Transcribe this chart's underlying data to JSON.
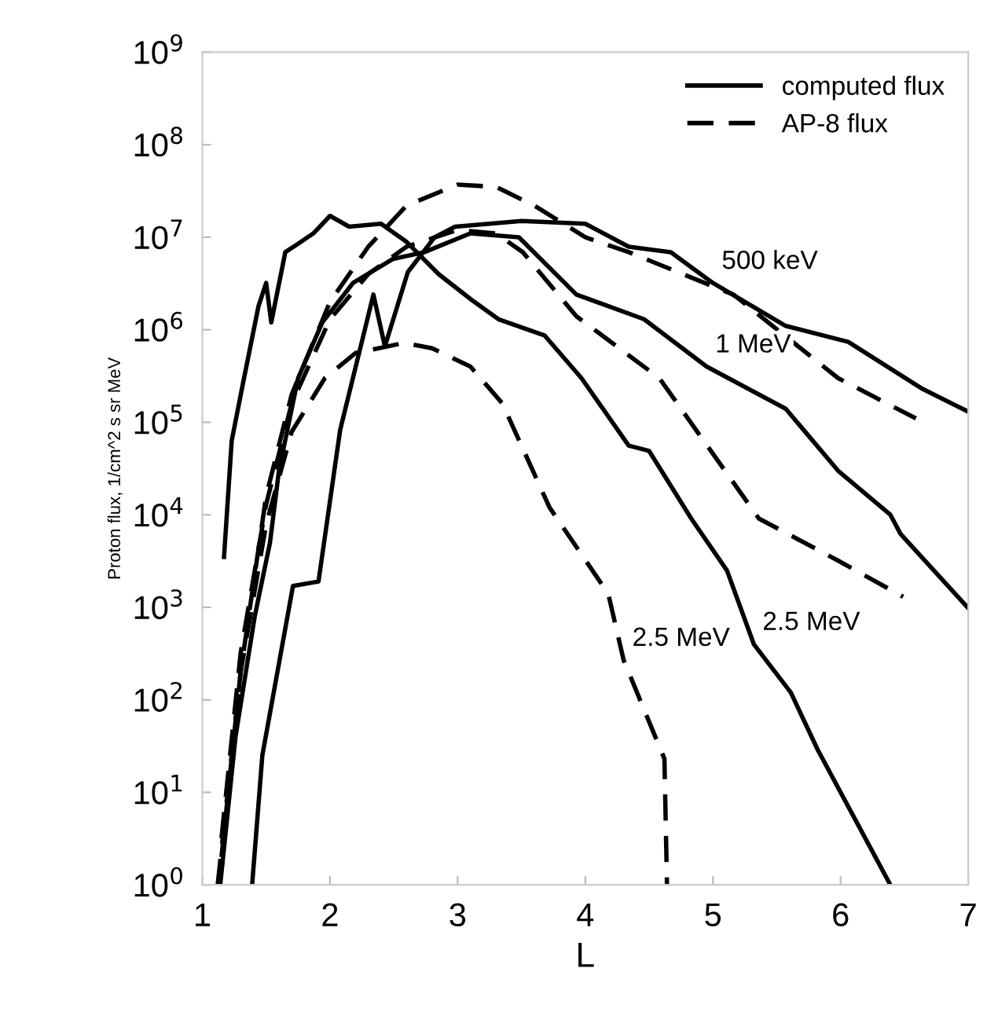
{
  "chart_data": {
    "type": "line",
    "xlabel": "L",
    "ylabel": "Proton flux, 1/cm^2 s sr MeV",
    "log": "y",
    "grid": false,
    "legend": "top right",
    "marker": "none",
    "xlim": [
      1,
      7
    ],
    "xticks": [
      1,
      2,
      3,
      4,
      5,
      6,
      7
    ],
    "ylim": [
      1,
      1000000000
    ],
    "yticks": [
      {
        "value": 1,
        "label": "10$^{0}$"
      },
      {
        "value": 10,
        "label": "10$^{1}$"
      },
      {
        "value": 100,
        "label": "10$^{2}$"
      },
      {
        "value": 1000,
        "label": "10$^{3}$"
      },
      {
        "value": 10000,
        "label": "10$^{4}$"
      },
      {
        "value": 100000,
        "label": "10$^{5}$"
      },
      {
        "value": 1000000,
        "label": "10$^{6}$"
      },
      {
        "value": 10000000,
        "label": "10$^{7}$"
      },
      {
        "value": 100000000,
        "label": "10$^{8}$"
      },
      {
        "value": 1000000000,
        "label": "10$^{9}$"
      }
    ],
    "series": [
      {
        "name": "computed flux",
        "color": "#000000",
        "line_style": "solid",
        "x": [
          1.17,
          1.23,
          1.32,
          1.44,
          1.5,
          1.54,
          1.65,
          1.75,
          1.87,
          2.0,
          2.15,
          2.4,
          2.6,
          2.85,
          3.11,
          3.32,
          3.68,
          3.97,
          4.34,
          4.5,
          4.83,
          5.11,
          5.32,
          5.61,
          5.82,
          6.39
        ],
        "values": [
          3500,
          63000,
          270000,
          1800000,
          3200000,
          1200000,
          6900000,
          8500000,
          11000000,
          17000000,
          13000000,
          14000000,
          8900000,
          4000000,
          2100000,
          1300000,
          870000,
          300000,
          56000,
          49000,
          9100,
          2500,
          400,
          120,
          29,
          1
        ]
      },
      {
        "color": "#000000",
        "line_style": "solid",
        "x": [
          1.14,
          1.26,
          1.41,
          1.53,
          1.6,
          1.75,
          1.94,
          2.18,
          2.49,
          2.74,
          3.1,
          3.48,
          3.93,
          4.46,
          4.95,
          5.57,
          5.98,
          6.39,
          6.47,
          7.0
        ],
        "values": [
          1,
          40,
          790,
          5000,
          30000,
          300000,
          1200000,
          3200000,
          5800000,
          6900000,
          11000000,
          10000000,
          2400000,
          1300000,
          400000,
          140000,
          30000,
          10000,
          6200,
          980
        ]
      },
      {
        "color": "#000000",
        "line_style": "solid",
        "x": [
          1.39,
          1.47,
          1.71,
          1.91,
          2.08,
          2.28,
          2.34,
          2.43,
          2.61,
          2.82,
          2.98,
          3.5,
          4.0,
          4.34,
          4.67,
          5.0,
          5.57,
          6.06,
          6.64,
          7.0
        ],
        "values": [
          1,
          25,
          1700,
          1900,
          83000,
          1100000,
          2400000,
          660000,
          4200000,
          10000000,
          13000000,
          15000000,
          14000000,
          7900000,
          6900000,
          3200000,
          1100000,
          740000,
          230000,
          130000
        ]
      },
      {
        "name": "AP-8 flux",
        "color": "#000000",
        "line_style": "dashed",
        "x": [
          1.15,
          1.3,
          1.5,
          1.7,
          2.0,
          2.3,
          2.6,
          3.0,
          3.3,
          3.6,
          4.0,
          4.34,
          5.16,
          5.98,
          6.59
        ],
        "values": [
          2,
          200,
          16000,
          200000,
          2000000,
          7900000,
          22000000,
          37000000,
          35000000,
          22000000,
          10000000,
          6900000,
          2400000,
          300000,
          110000
        ]
      },
      {
        "color": "#000000",
        "line_style": "dashed",
        "x": [
          1.15,
          1.3,
          1.5,
          1.7,
          2.0,
          2.3,
          2.6,
          3.0,
          3.3,
          3.51,
          3.93,
          4.58,
          5.36,
          5.98,
          6.49
        ],
        "values": [
          3.2,
          320,
          13000,
          160000,
          1300000,
          4000000,
          7900000,
          12000000,
          11000000,
          6900000,
          1400000,
          300000,
          9100,
          3200,
          1300
        ]
      },
      {
        "color": "#000000",
        "line_style": "dashed",
        "x": [
          1.12,
          1.3,
          1.5,
          1.7,
          1.96,
          2.2,
          2.58,
          2.8,
          3.1,
          3.35,
          3.72,
          4.18,
          4.3,
          4.62,
          4.64
        ],
        "values": [
          1,
          200,
          7900,
          79000,
          300000,
          560000,
          720000,
          630000,
          400000,
          160000,
          12000,
          1400,
          270,
          23,
          1
        ]
      }
    ],
    "annotations": [
      {
        "text": "500 keV",
        "x": 5.0,
        "y": 3200000
      },
      {
        "text": "1 MeV",
        "x": 4.95,
        "y": 400000
      },
      {
        "text": "2.5 MeV",
        "x": 5.32,
        "y": 400
      },
      {
        "text": "2.5 MeV",
        "x": 4.3,
        "y": 270
      }
    ]
  }
}
